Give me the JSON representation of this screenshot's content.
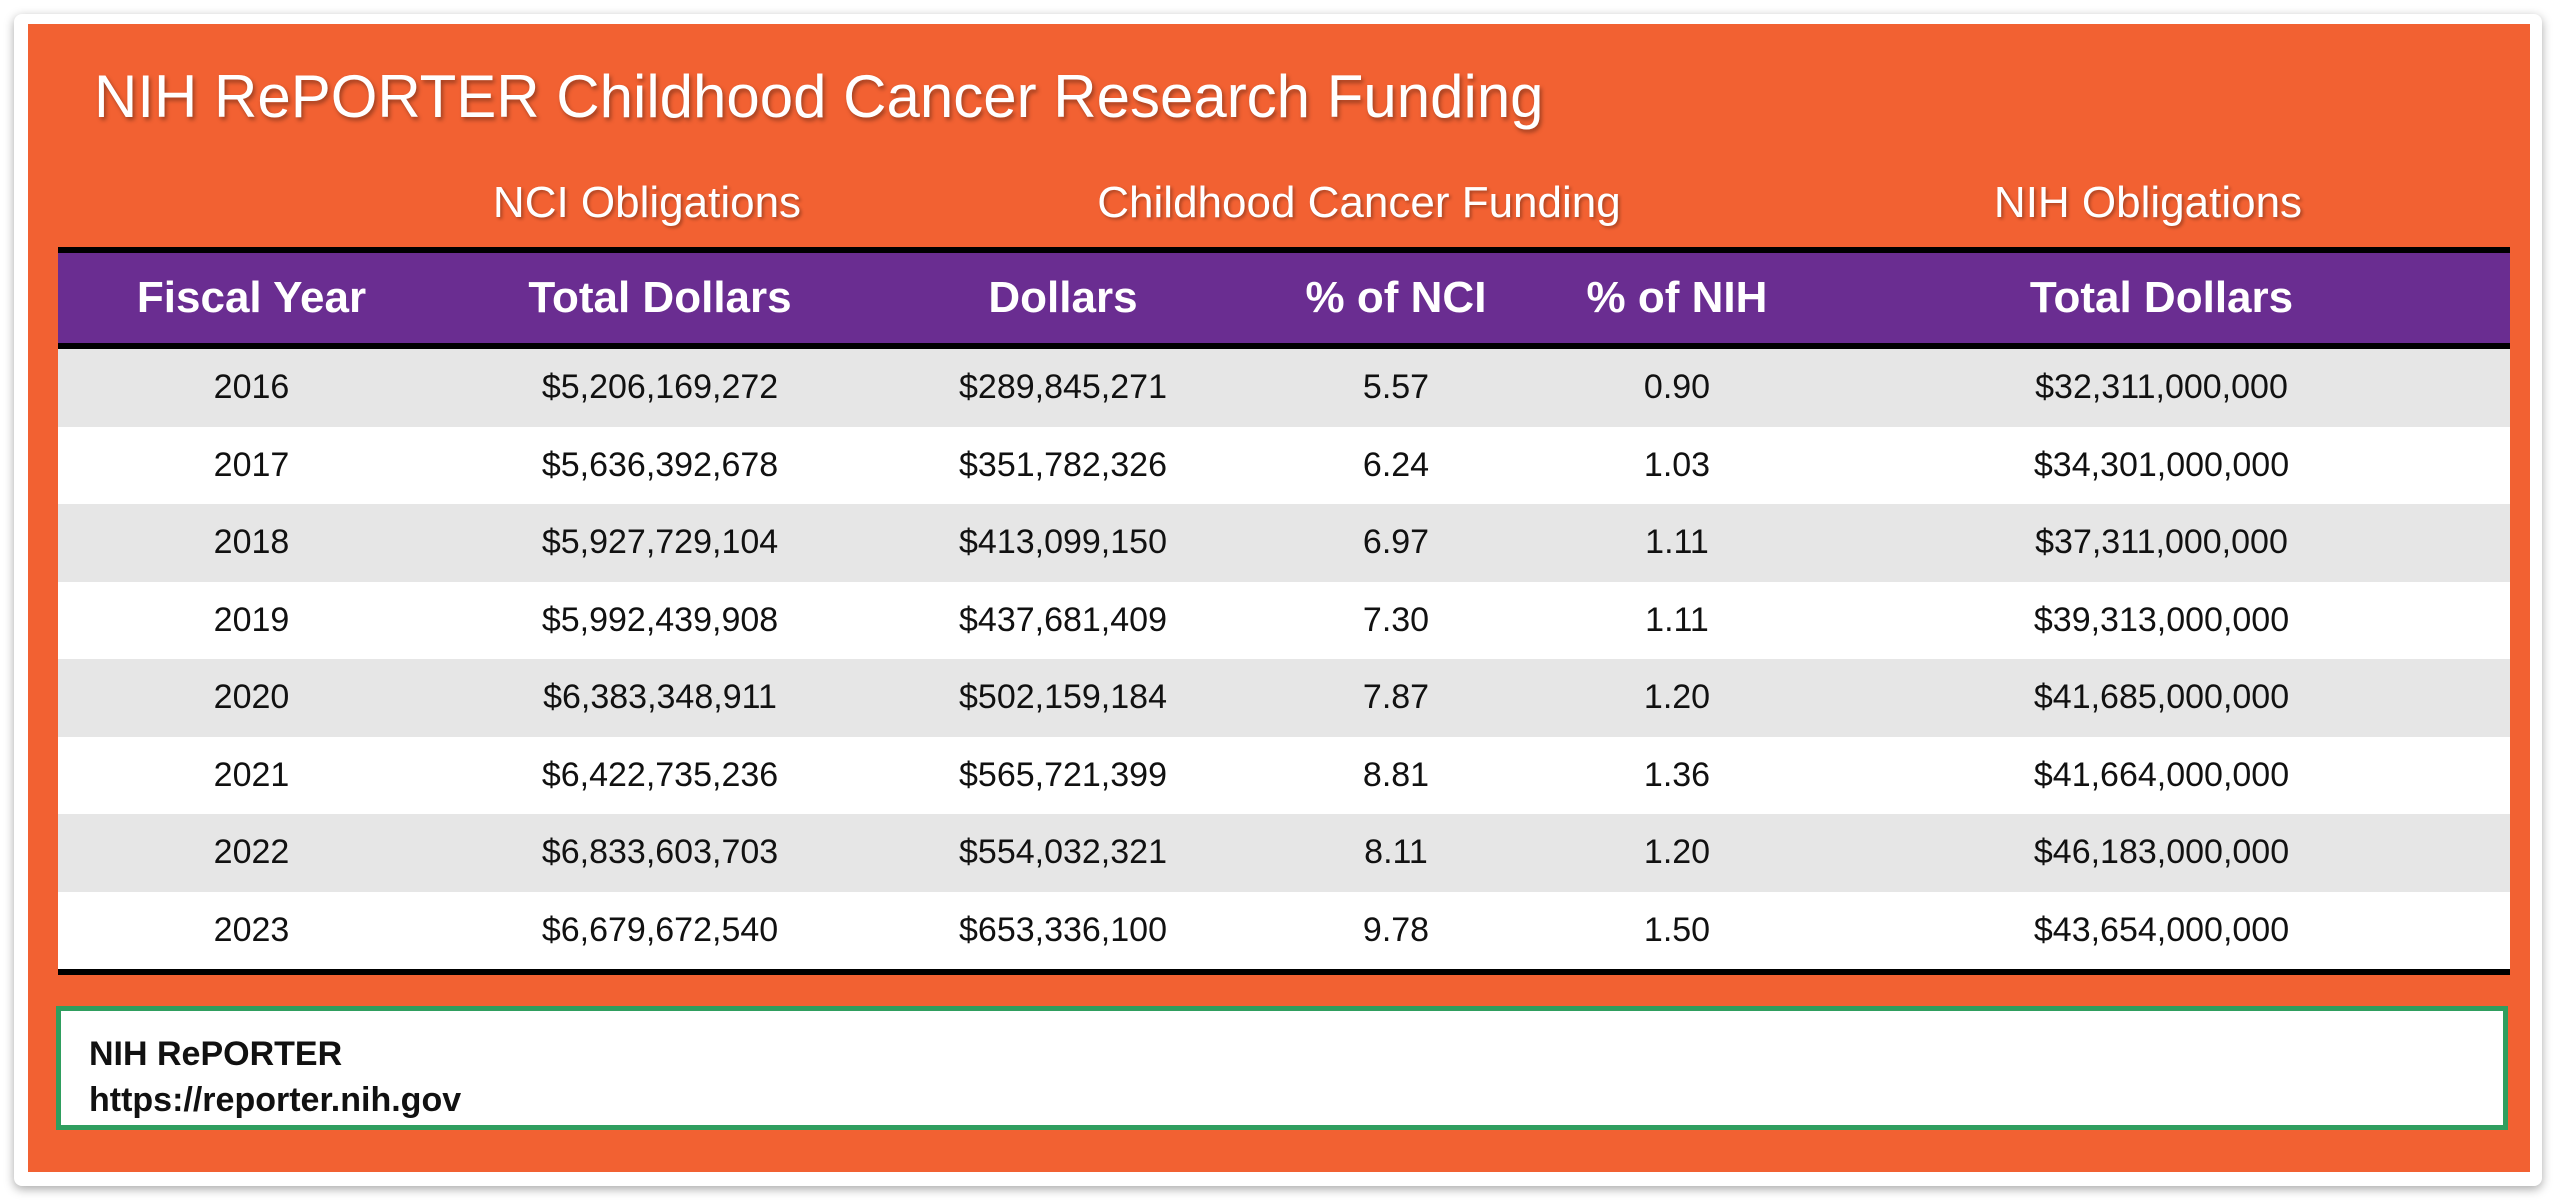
{
  "title": "NIH RePORTER Childhood Cancer Research Funding",
  "column_groups": {
    "nci": "NCI Obligations",
    "childhood": "Childhood Cancer Funding",
    "nih": "NIH Obligations"
  },
  "colors": {
    "background": "#f26132",
    "header": "#6a2d91",
    "source_border": "#2f9e5f",
    "row_alt": "#e6e6e6"
  },
  "chart_data": {
    "type": "table",
    "title": "NIH RePORTER Childhood Cancer Research Funding",
    "columns": [
      "Fiscal Year",
      "Total Dollars",
      "Dollars",
      "% of NCI",
      "% of NIH",
      "Total Dollars"
    ],
    "rows": [
      [
        "2016",
        "$5,206,169,272",
        "$289,845,271",
        "5.57",
        "0.90",
        "$32,311,000,000"
      ],
      [
        "2017",
        "$5,636,392,678",
        "$351,782,326",
        "6.24",
        "1.03",
        "$34,301,000,000"
      ],
      [
        "2018",
        "$5,927,729,104",
        "$413,099,150",
        "6.97",
        "1.11",
        "$37,311,000,000"
      ],
      [
        "2019",
        "$5,992,439,908",
        "$437,681,409",
        "7.30",
        "1.11",
        "$39,313,000,000"
      ],
      [
        "2020",
        "$6,383,348,911",
        "$502,159,184",
        "7.87",
        "1.20",
        "$41,685,000,000"
      ],
      [
        "2021",
        "$6,422,735,236",
        "$565,721,399",
        "8.81",
        "1.36",
        "$41,664,000,000"
      ],
      [
        "2022",
        "$6,833,603,703",
        "$554,032,321",
        "8.11",
        "1.20",
        "$46,183,000,000"
      ],
      [
        "2023",
        "$6,679,672,540",
        "$653,336,100",
        "9.78",
        "1.50",
        "$43,654,000,000"
      ]
    ]
  },
  "source": {
    "name": "NIH RePORTER",
    "url": "https://reporter.nih.gov"
  }
}
